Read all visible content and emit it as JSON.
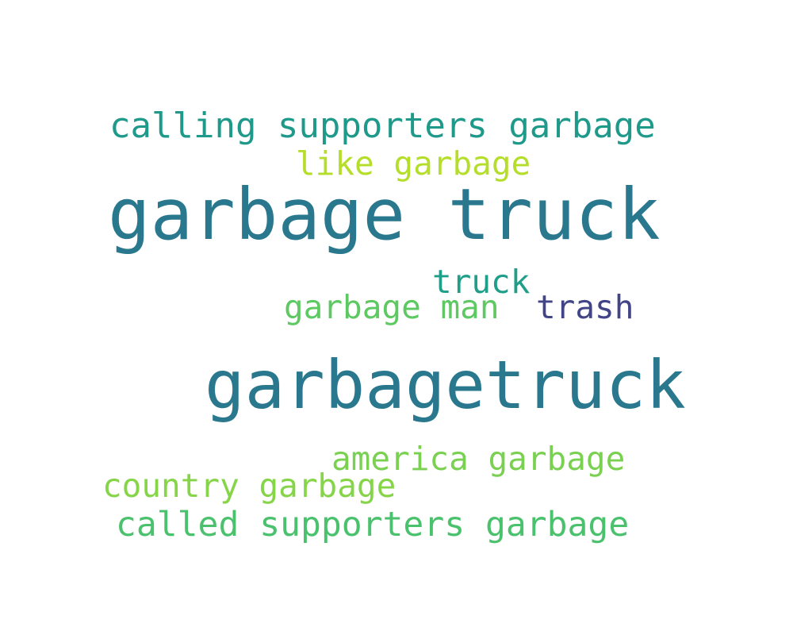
{
  "words": [
    {
      "id": "garbage-truck",
      "text": "garbage truck",
      "color": "#2a788e"
    },
    {
      "id": "garbagetruck",
      "text": "garbagetruck",
      "color": "#2a788e"
    },
    {
      "id": "calling-supporters",
      "text": "calling supporters garbage",
      "color": "#1f9a8a"
    },
    {
      "id": "like-garbage",
      "text": "like garbage",
      "color": "#b5de2b"
    },
    {
      "id": "truck",
      "text": "truck",
      "color": "#1f9e89"
    },
    {
      "id": "garbage-man",
      "text": "garbage man",
      "color": "#5ec962"
    },
    {
      "id": "trash",
      "text": "trash",
      "color": "#414487"
    },
    {
      "id": "america-garbage",
      "text": "america garbage",
      "color": "#7ad151"
    },
    {
      "id": "country-garbage",
      "text": "country garbage",
      "color": "#86d549"
    },
    {
      "id": "called-supporters",
      "text": "called supporters garbage",
      "color": "#4ac16d"
    }
  ]
}
